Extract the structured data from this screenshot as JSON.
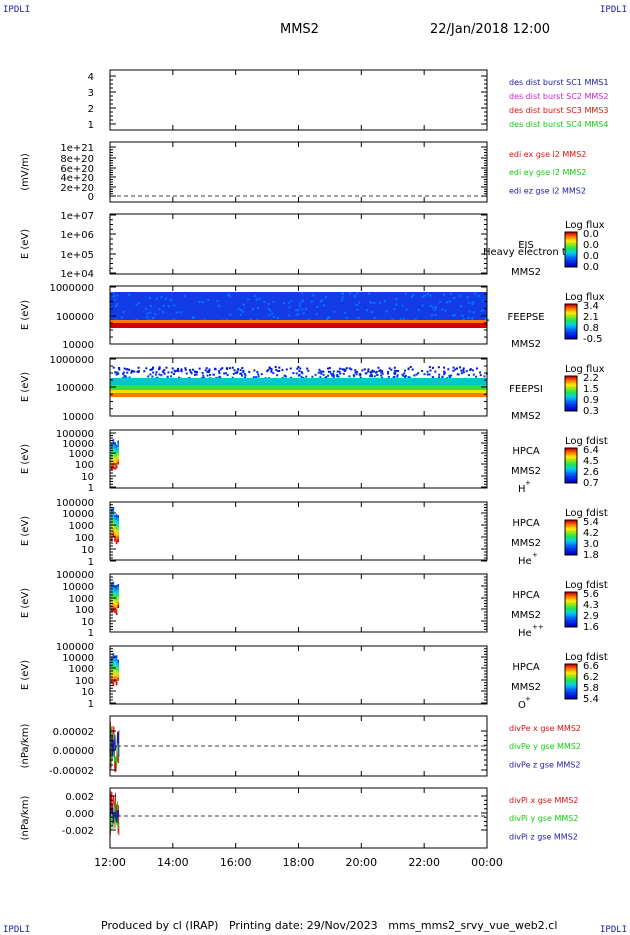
{
  "header": {
    "corner_label": "IPDLI",
    "spacecraft": "MMS2",
    "datetime": "22/Jan/2018 12:00"
  },
  "footer": {
    "producer": "Produced by cl (IRAP)",
    "printing_date": "Printing date: 29/Nov/2023",
    "script_name": "mms_mms2_srvy_vue_web2.cl"
  },
  "chart_data": {
    "type": "stacked time-series and spectrogram panels",
    "x_axis": {
      "ticks": [
        "12:00",
        "14:00",
        "16:00",
        "18:00",
        "20:00",
        "22:00",
        "00:00"
      ],
      "range_hours": [
        12,
        24
      ]
    },
    "panels": [
      {
        "id": "des_dist_burst",
        "type": "line",
        "ylabel": "",
        "yticks": [
          "4",
          "3",
          "2",
          "1"
        ],
        "legend": [
          {
            "label": "des dist burst SC1 MMS1",
            "color": "#1a1aa6"
          },
          {
            "label": "des dist burst SC2 MMS2",
            "color": "#cc22cc"
          },
          {
            "label": "des dist burst SC3 MMS3",
            "color": "#dd1111"
          },
          {
            "label": "des dist burst SC4 MMS4",
            "color": "#11cc11"
          }
        ],
        "series": []
      },
      {
        "id": "edi_e_gse",
        "type": "line",
        "ylabel": "(mV/m)",
        "yticks": [
          "1e+21",
          "8e+20",
          "6e+20",
          "4e+20",
          "2e+20",
          "0"
        ],
        "zero_line": true,
        "legend": [
          {
            "label": "edi ex gse l2 MMS2",
            "color": "#dd1111"
          },
          {
            "label": "edi ey gse l2 MMS2",
            "color": "#11cc11"
          },
          {
            "label": "edi ez gse l2 MMS2",
            "color": "#1a1aa6"
          }
        ],
        "series": []
      },
      {
        "id": "eis",
        "type": "heatmap",
        "ylabel": "E (eV)",
        "yticks": [
          "1e+07",
          "1e+06",
          "1e+05",
          "1e+04"
        ],
        "instrument": "EIS",
        "spacecraft": "MMS2",
        "overlay_text": "Heavy electron to",
        "colorbar": {
          "title": "Log flux",
          "ticks": [
            "0.0",
            "0.0",
            "0.0",
            "0.0"
          ]
        },
        "coverage_hours": null
      },
      {
        "id": "feepse",
        "type": "heatmap",
        "ylabel": "E (eV)",
        "yticks": [
          "1000000",
          "100000",
          "10000"
        ],
        "instrument": "FEEPSE",
        "spacecraft": "MMS2",
        "colorbar": {
          "title": "Log flux",
          "ticks": [
            "3.4",
            "2.1",
            "0.8",
            "-0.5"
          ]
        },
        "coverage_hours": [
          12,
          24
        ]
      },
      {
        "id": "feepsi",
        "type": "heatmap",
        "ylabel": "E (eV)",
        "yticks": [
          "1000000",
          "100000",
          "10000"
        ],
        "instrument": "FEEPSI",
        "spacecraft": "MMS2",
        "colorbar": {
          "title": "Log flux",
          "ticks": [
            "2.2",
            "1.5",
            "0.9",
            "0.3"
          ]
        },
        "coverage_hours": [
          12,
          24
        ]
      },
      {
        "id": "hpca_h",
        "type": "heatmap",
        "ylabel": "E (eV)",
        "yticks": [
          "100000",
          "10000",
          "1000",
          "100",
          "10",
          "1"
        ],
        "instrument": "HPCA",
        "spacecraft": "MMS2",
        "species": "H",
        "charge": "+",
        "colorbar": {
          "title": "Log fdist",
          "ticks": [
            "6.4",
            "4.5",
            "2.6",
            "0.7"
          ]
        },
        "coverage_hours": [
          12,
          12.3
        ]
      },
      {
        "id": "hpca_he",
        "type": "heatmap",
        "ylabel": "E (eV)",
        "yticks": [
          "100000",
          "10000",
          "1000",
          "100",
          "10",
          "1"
        ],
        "instrument": "HPCA",
        "spacecraft": "MMS2",
        "species": "He",
        "charge": "+",
        "colorbar": {
          "title": "Log fdist",
          "ticks": [
            "5.4",
            "4.2",
            "3.0",
            "1.8"
          ]
        },
        "coverage_hours": [
          12,
          12.3
        ]
      },
      {
        "id": "hpca_he2",
        "type": "heatmap",
        "ylabel": "E (eV)",
        "yticks": [
          "100000",
          "10000",
          "1000",
          "100",
          "10",
          "1"
        ],
        "instrument": "HPCA",
        "spacecraft": "MMS2",
        "species": "He",
        "charge": "++",
        "colorbar": {
          "title": "Log fdist",
          "ticks": [
            "5.6",
            "4.3",
            "2.9",
            "1.6"
          ]
        },
        "coverage_hours": [
          12,
          12.3
        ]
      },
      {
        "id": "hpca_o",
        "type": "heatmap",
        "ylabel": "E (eV)",
        "yticks": [
          "100000",
          "10000",
          "1000",
          "100",
          "10",
          "1"
        ],
        "instrument": "HPCA",
        "spacecraft": "MMS2",
        "species": "O",
        "charge": "+",
        "colorbar": {
          "title": "Log fdist",
          "ticks": [
            "6.6",
            "6.2",
            "5.8",
            "5.4"
          ]
        },
        "coverage_hours": [
          12,
          12.3
        ]
      },
      {
        "id": "divpe",
        "type": "line",
        "ylabel": "(nPa/km)",
        "yticks": [
          "0.00002",
          "0.00000",
          "-0.00002"
        ],
        "ylim": [
          -2.5e-05,
          2.5e-05
        ],
        "zero_line": true,
        "legend": [
          {
            "label": "divPe x gse MMS2",
            "color": "#dd1111"
          },
          {
            "label": "divPe y gse MMS2",
            "color": "#11cc11"
          },
          {
            "label": "divPe z gse MMS2",
            "color": "#1a1aa6"
          }
        ],
        "series_amplitude": [
          2.2e-05,
          1.8e-05,
          1.2e-05
        ],
        "coverage_hours": [
          12,
          12.3
        ]
      },
      {
        "id": "divpi",
        "type": "line",
        "ylabel": "(nPa/km)",
        "yticks": [
          "0.002",
          "0.000",
          "-0.002"
        ],
        "ylim": [
          -0.0032,
          0.0028
        ],
        "zero_line": true,
        "legend": [
          {
            "label": "divPi x gse MMS2",
            "color": "#dd1111"
          },
          {
            "label": "divPi y gse MMS2",
            "color": "#11cc11"
          },
          {
            "label": "divPi z gse MMS2",
            "color": "#1a1aa6"
          }
        ],
        "series_amplitude": [
          0.0025,
          0.0015,
          0.0008
        ],
        "coverage_hours": [
          12,
          12.3
        ]
      }
    ]
  }
}
